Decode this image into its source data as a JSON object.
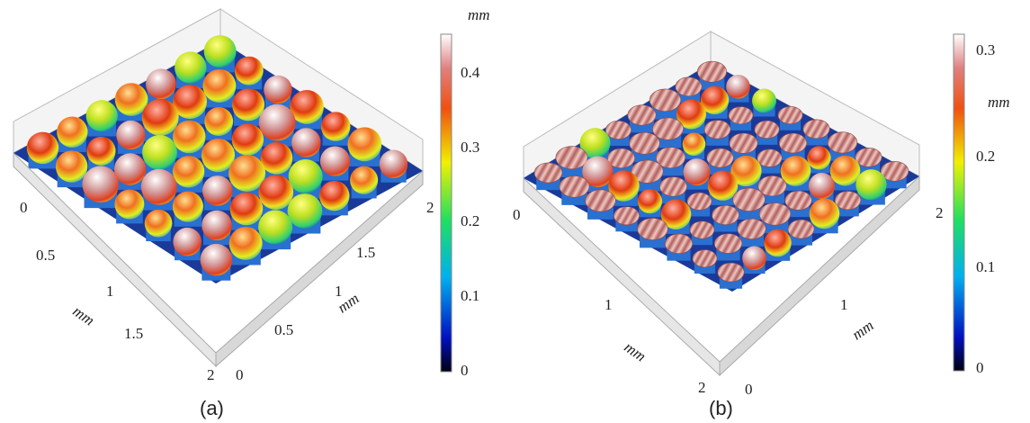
{
  "panels": [
    {
      "caption": "(a)",
      "colorbar": {
        "unit": "mm",
        "ticks": [
          "0",
          "0.1",
          "0.2",
          "0.3",
          "0.4"
        ]
      },
      "x_axis": {
        "label": "mm",
        "ticks": [
          "0",
          "0.5",
          "1",
          "1.5",
          "2"
        ]
      },
      "y_axis": {
        "label": "mm",
        "ticks": [
          "0",
          "0.5",
          "1",
          "1.5",
          "2"
        ]
      }
    },
    {
      "caption": "(b)",
      "colorbar": {
        "unit": "mm",
        "ticks": [
          "0",
          "0.1",
          "0.2",
          "0.3"
        ]
      },
      "x_axis": {
        "label": "mm",
        "ticks": [
          "0",
          "1",
          "2"
        ]
      },
      "y_axis": {
        "label": "mm",
        "ticks": [
          "0",
          "1",
          "2"
        ]
      }
    }
  ]
}
